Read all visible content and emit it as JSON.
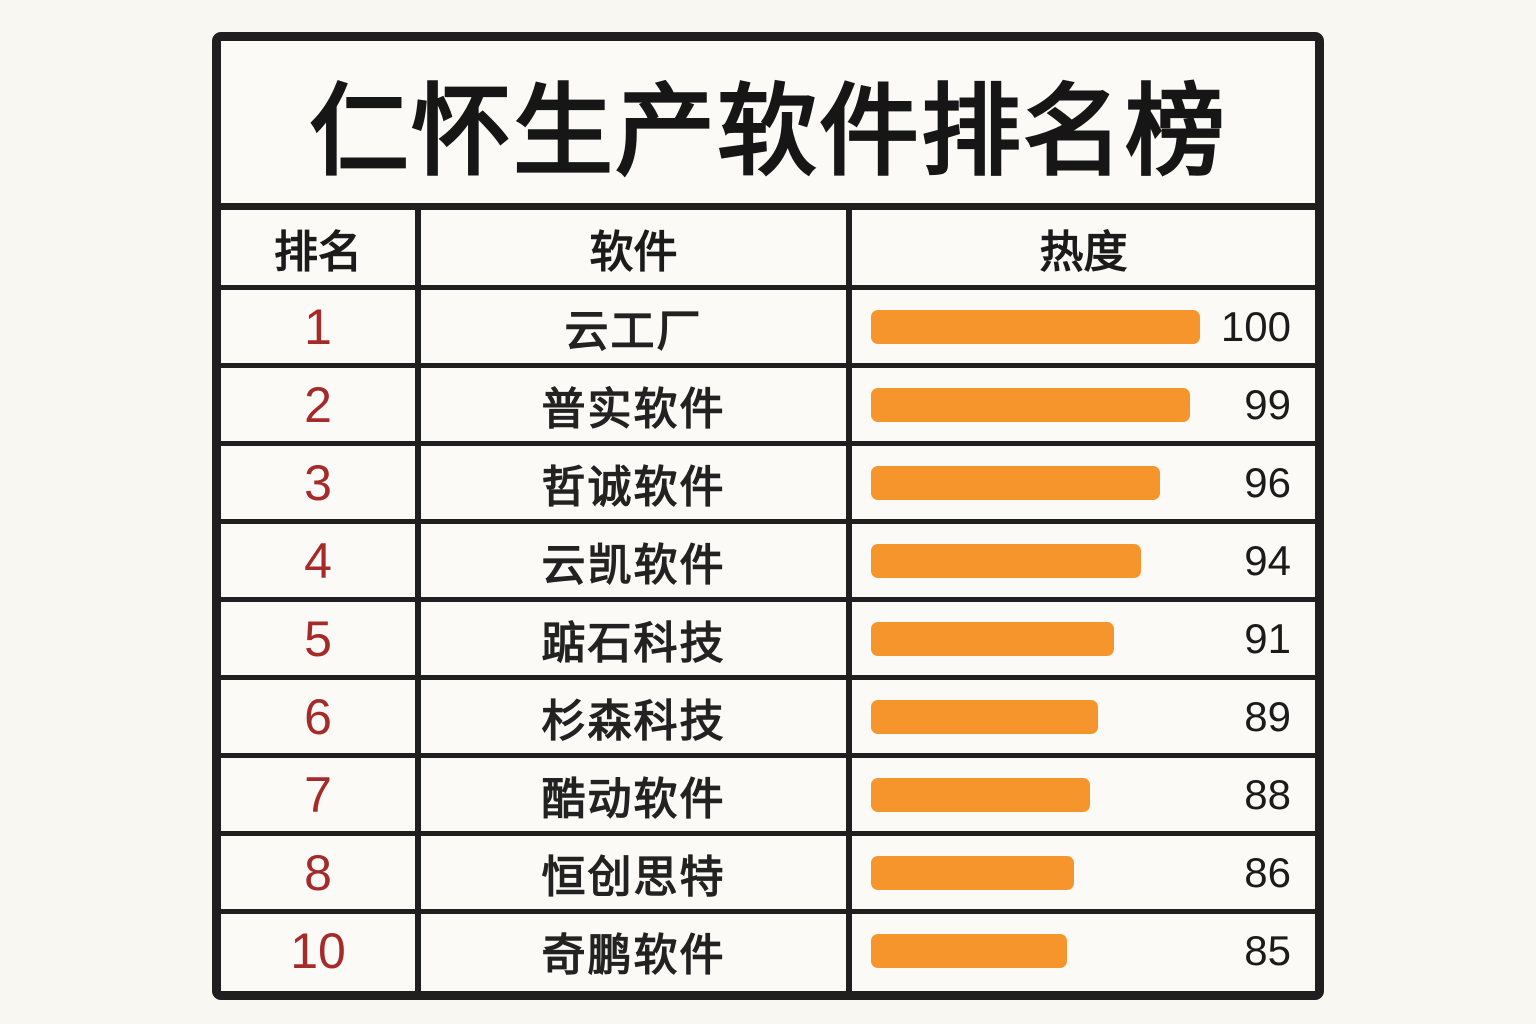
{
  "title": "仁怀生产软件排名榜",
  "chart_data": {
    "type": "table",
    "title": "仁怀生产软件排名榜",
    "columns": [
      "排名",
      "软件",
      "热度"
    ],
    "rows": [
      {
        "rank": "1",
        "name": "云工厂",
        "heat": 100
      },
      {
        "rank": "2",
        "name": "普实软件",
        "heat": 99
      },
      {
        "rank": "3",
        "name": "哲诚软件",
        "heat": 96
      },
      {
        "rank": "4",
        "name": "云凯软件",
        "heat": 94
      },
      {
        "rank": "5",
        "name": "踮石科技",
        "heat": 91
      },
      {
        "rank": "6",
        "name": "杉森科技",
        "heat": 89
      },
      {
        "rank": "7",
        "name": "酷动软件",
        "heat": 88
      },
      {
        "rank": "8",
        "name": "恒创思特",
        "heat": 86
      },
      {
        "rank": "10",
        "name": "奇鹏软件",
        "heat": 85
      }
    ],
    "bar_color": "#f7952d",
    "rank_color": "#a52b2b"
  }
}
